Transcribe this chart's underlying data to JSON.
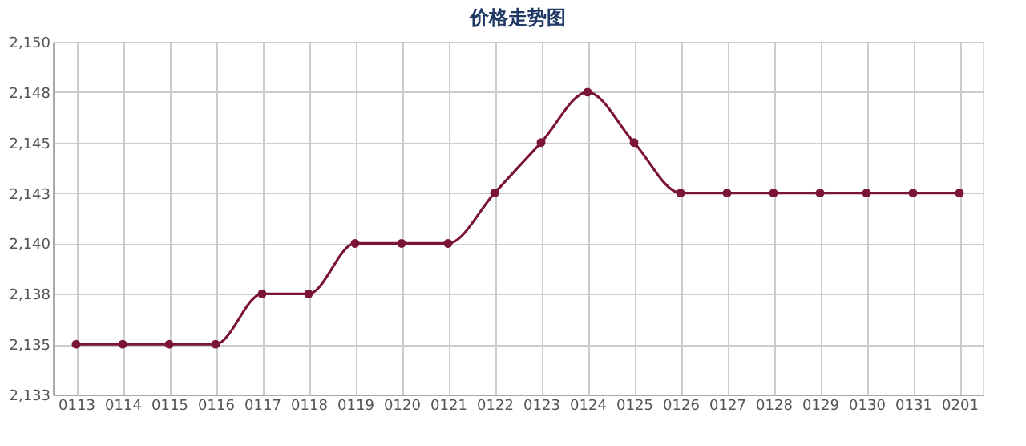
{
  "chart_data": {
    "type": "line",
    "title": "价格走势图",
    "categories": [
      "0113",
      "0114",
      "0115",
      "0116",
      "0117",
      "0118",
      "0119",
      "0120",
      "0121",
      "0122",
      "0123",
      "0124",
      "0125",
      "0126",
      "0127",
      "0128",
      "0129",
      "0130",
      "0131",
      "0201"
    ],
    "series": [
      {
        "color": "#7b1535",
        "values": [
          2135,
          2135,
          2135,
          2135,
          2137.5,
          2137.5,
          2140,
          2140,
          2140,
          2142.5,
          2145,
          2147.5,
          2145,
          2142.5,
          2142.5,
          2142.5,
          2142.5,
          2142.5,
          2142.5,
          2142.5
        ]
      }
    ],
    "ylim": [
      2132.5,
      2150
    ],
    "yticks": [
      {
        "value": 2132.5,
        "label": "2,133"
      },
      {
        "value": 2135,
        "label": "2,135"
      },
      {
        "value": 2137.5,
        "label": "2,138"
      },
      {
        "value": 2140,
        "label": "2,140"
      },
      {
        "value": 2142.5,
        "label": "2,143"
      },
      {
        "value": 2145,
        "label": "2,145"
      },
      {
        "value": 2147.5,
        "label": "2,148"
      },
      {
        "value": 2150,
        "label": "2,150"
      }
    ],
    "grid": true,
    "marker": "circle",
    "line_style": "solid"
  }
}
